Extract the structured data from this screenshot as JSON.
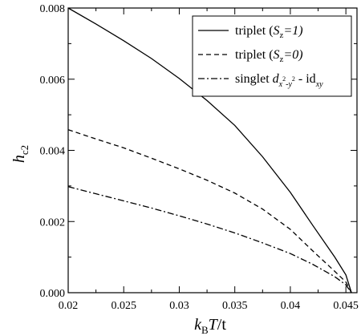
{
  "chart_data": {
    "type": "line",
    "xlabel_parts": {
      "k": "k",
      "sub_B": "B",
      "T": "T",
      "rest": "/t"
    },
    "ylabel_parts": {
      "h": "h",
      "sub": "c2"
    },
    "xlim": [
      0.02,
      0.046
    ],
    "ylim": [
      0.0,
      0.008
    ],
    "xticks": [
      0.02,
      0.025,
      0.03,
      0.035,
      0.04,
      0.045
    ],
    "xtick_labels": [
      "0.02",
      "0.025",
      "0.03",
      "0.035",
      "0.04",
      "0.045"
    ],
    "yticks": [
      0.0,
      0.002,
      0.004,
      0.006,
      0.008
    ],
    "ytick_labels": [
      "0.000",
      "0.002",
      "0.004",
      "0.006",
      "0.008"
    ],
    "legend_position": "top-right",
    "series": [
      {
        "dash": "solid",
        "legend": {
          "base": "triplet (",
          "S": "S",
          "sub": "z",
          "tail": "=1)"
        },
        "x": [
          0.02,
          0.0225,
          0.025,
          0.0275,
          0.03,
          0.0325,
          0.035,
          0.0375,
          0.04,
          0.042,
          0.044,
          0.045,
          0.0455
        ],
        "y": [
          0.008,
          0.00755,
          0.00708,
          0.00658,
          0.00602,
          0.0054,
          0.0047,
          0.00382,
          0.00282,
          0.0019,
          0.001,
          0.0005,
          0.0
        ]
      },
      {
        "dash": "dashed",
        "legend": {
          "base": "triplet (",
          "S": "S",
          "sub": "z",
          "tail": "=0)"
        },
        "x": [
          0.02,
          0.0225,
          0.025,
          0.0275,
          0.03,
          0.0325,
          0.035,
          0.0375,
          0.04,
          0.042,
          0.044,
          0.045,
          0.0455
        ],
        "y": [
          0.00458,
          0.00432,
          0.00407,
          0.00378,
          0.00348,
          0.00316,
          0.0028,
          0.00235,
          0.00178,
          0.00118,
          0.0006,
          0.0003,
          0.0
        ]
      },
      {
        "dash": "dashdot",
        "legend": {
          "base": "singlet ",
          "d": "d",
          "sub1": "x",
          "sup1": "2",
          "sub_mid": "-y",
          "sup2": "2",
          "tail": " - id",
          "sub2": "xy"
        },
        "x": [
          0.02,
          0.0225,
          0.025,
          0.0275,
          0.03,
          0.0325,
          0.035,
          0.0375,
          0.04,
          0.042,
          0.044,
          0.045,
          0.0455
        ],
        "y": [
          0.00298,
          0.00278,
          0.00258,
          0.00238,
          0.00216,
          0.00193,
          0.00168,
          0.0014,
          0.0011,
          0.0008,
          0.00045,
          0.00022,
          0.0
        ]
      }
    ]
  }
}
